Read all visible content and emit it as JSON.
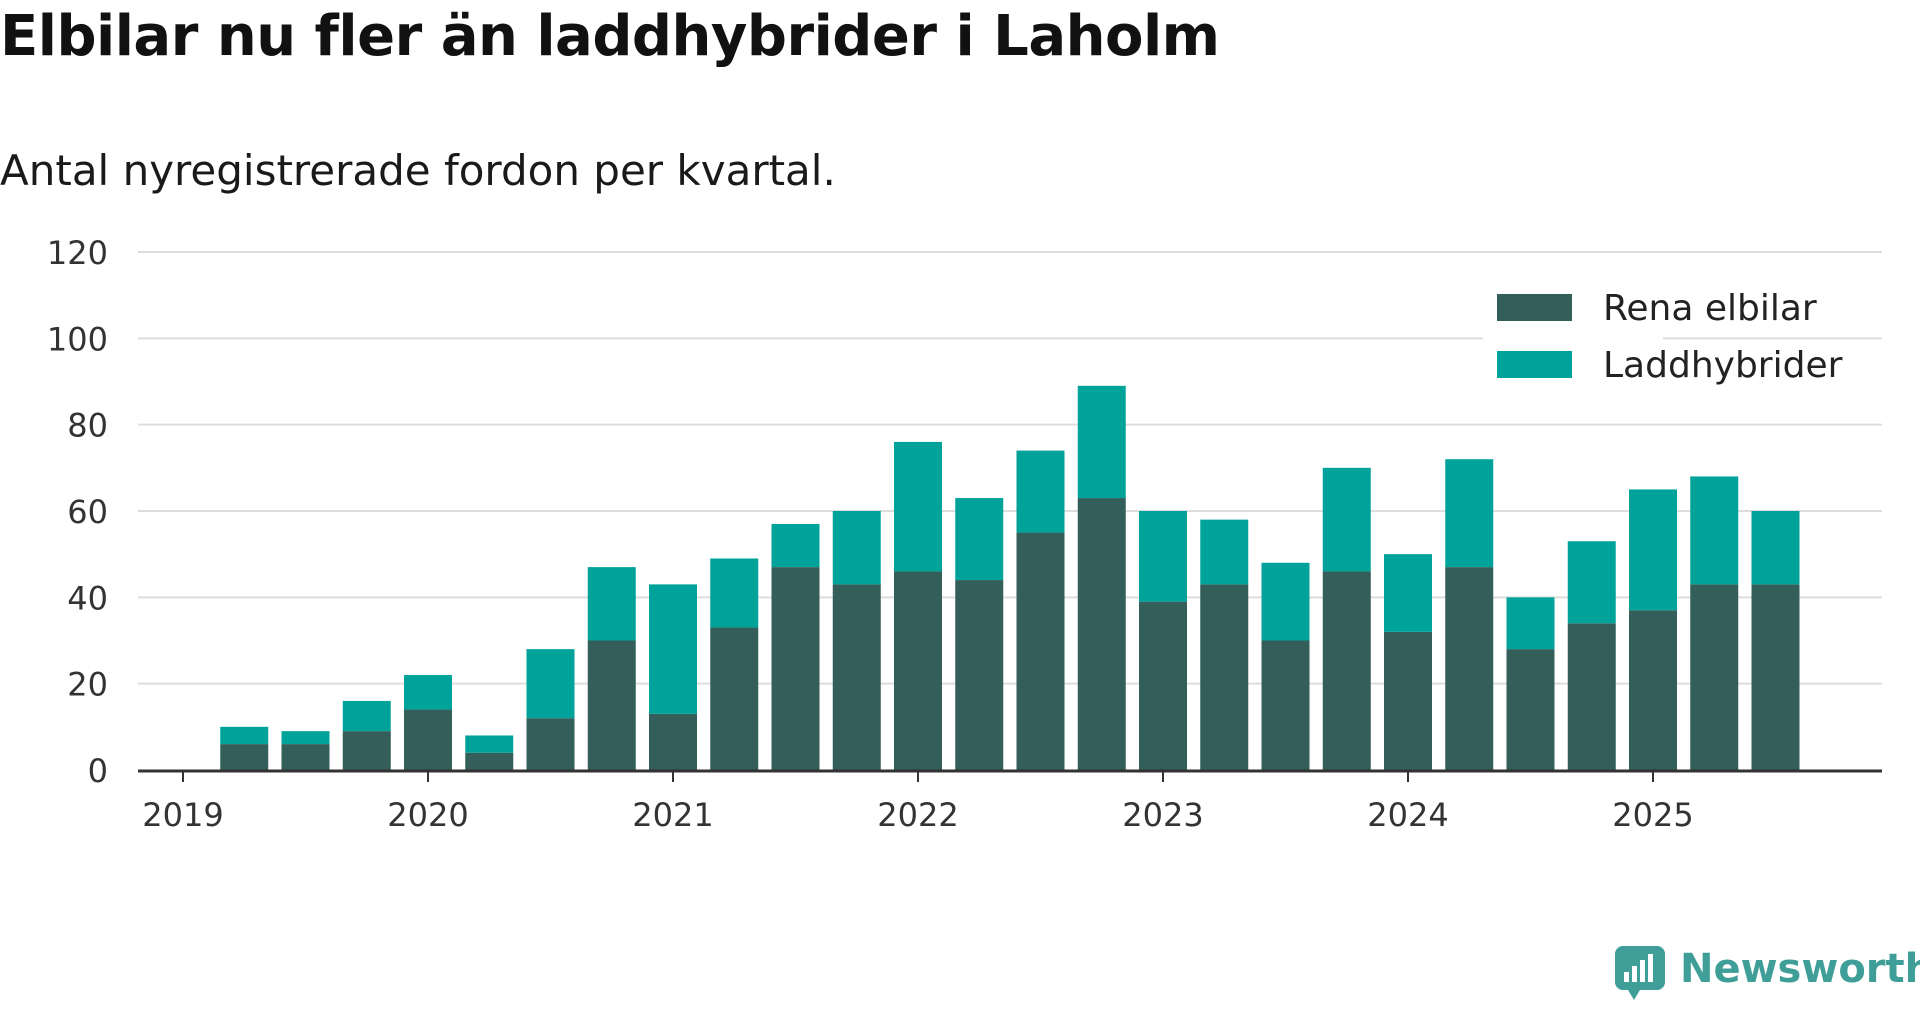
{
  "title": "Elbilar nu fler än laddhybrider i Laholm",
  "subtitle": "Antal nyregistrerade fordon per kvartal.",
  "brand": "Newsworthy",
  "colors": {
    "elbilar": "#335e59",
    "laddhybrider": "#00a39a",
    "grid": "#dddddd",
    "axis": "#333333",
    "brand": "#3f9f98"
  },
  "chart_data": {
    "type": "bar",
    "stacked": true,
    "categories": [
      "2019 Q1",
      "2019 Q2",
      "2019 Q3",
      "2019 Q4",
      "2020 Q1",
      "2020 Q2",
      "2020 Q3",
      "2020 Q4",
      "2021 Q1",
      "2021 Q2",
      "2021 Q3",
      "2021 Q4",
      "2022 Q1",
      "2022 Q2",
      "2022 Q3",
      "2022 Q4",
      "2023 Q1",
      "2023 Q2",
      "2023 Q3",
      "2023 Q4",
      "2024 Q1",
      "2024 Q2",
      "2024 Q3",
      "2024 Q4",
      "2025 Q1",
      "2025 Q2",
      "2025 Q3"
    ],
    "x_tick_labels": [
      "2019",
      "2020",
      "2021",
      "2022",
      "2023",
      "2024",
      "2025"
    ],
    "y_ticks": [
      0,
      20,
      40,
      60,
      80,
      100,
      120
    ],
    "ylim": [
      0,
      120
    ],
    "grid": true,
    "legend_position": "top-right",
    "series": [
      {
        "name": "Rena elbilar",
        "values": [
          0,
          6,
          6,
          9,
          14,
          4,
          12,
          30,
          13,
          33,
          47,
          43,
          46,
          44,
          55,
          63,
          39,
          43,
          30,
          46,
          32,
          47,
          28,
          34,
          37,
          43,
          43
        ]
      },
      {
        "name": "Laddhybrider",
        "values": [
          0,
          4,
          3,
          7,
          8,
          4,
          16,
          17,
          30,
          16,
          10,
          17,
          30,
          19,
          19,
          26,
          21,
          15,
          18,
          24,
          18,
          25,
          12,
          19,
          28,
          25,
          17
        ]
      }
    ]
  }
}
